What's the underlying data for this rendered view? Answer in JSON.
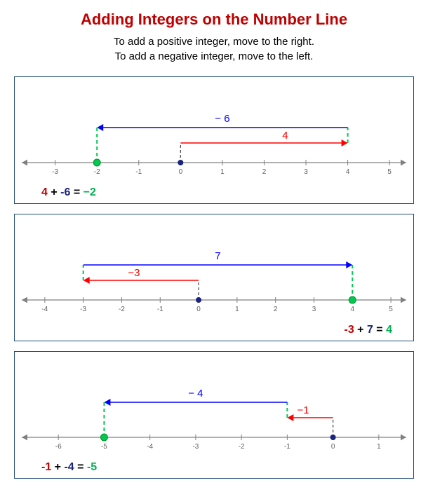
{
  "title": "Adding Integers on the Number Line",
  "title_color": "#c00000",
  "subtitle_line1": "To add a positive integer, move to the right.",
  "subtitle_line2": "To add a negative integer, move to the left.",
  "subtitle_color": "#000000",
  "panel_border_color": "#1f4e79",
  "axis_color": "#808080",
  "tick_label_color": "#606060",
  "tick_label_fontsize": 10,
  "start_dot_color": "#1a237e",
  "end_dot_color": "#00c853",
  "dash_color": "#00c853",
  "arrow1_color": "#ff0000",
  "arrow2_color": "#0000ff",
  "label_fontsize": 15,
  "panels": [
    {
      "xmin": -3.8,
      "xmax": 5.4,
      "ticks": [
        -3,
        -2,
        -1,
        0,
        1,
        2,
        3,
        4,
        5
      ],
      "start": 0,
      "step1_to": 4,
      "step1_label": "4",
      "step1_y": 28,
      "step2_to": -2,
      "step2_label": "− 6",
      "step2_y": 50,
      "equation_side": "left",
      "eq_parts": [
        {
          "text": "4",
          "color": "#c00000"
        },
        {
          "text": " + ",
          "color": "#000000"
        },
        {
          "text": "-6",
          "color": "#1a237e"
        },
        {
          "text": " = ",
          "color": "#000000"
        },
        {
          "text": "−2",
          "color": "#00b050"
        }
      ]
    },
    {
      "xmin": -4.6,
      "xmax": 5.4,
      "ticks": [
        -4,
        -3,
        -2,
        -1,
        0,
        1,
        2,
        3,
        4,
        5
      ],
      "start": 0,
      "step1_to": -3,
      "step1_label": "−3",
      "step1_y": 28,
      "step2_to": 4,
      "step2_label": "7",
      "step2_y": 50,
      "equation_side": "right",
      "eq_parts": [
        {
          "text": "-3",
          "color": "#c00000"
        },
        {
          "text": " + ",
          "color": "#000000"
        },
        {
          "text": "7",
          "color": "#1a237e"
        },
        {
          "text": " = ",
          "color": "#000000"
        },
        {
          "text": "4",
          "color": "#00b050"
        }
      ]
    },
    {
      "xmin": -6.8,
      "xmax": 1.6,
      "ticks": [
        -6,
        -5,
        -4,
        -3,
        -2,
        -1,
        0,
        1
      ],
      "start": 0,
      "step1_to": -1,
      "step1_label": "−1",
      "step1_y": 28,
      "step2_to": -5,
      "step2_label": "− 4",
      "step2_y": 50,
      "equation_side": "left",
      "eq_parts": [
        {
          "text": "-1",
          "color": "#c00000"
        },
        {
          "text": " + ",
          "color": "#000000"
        },
        {
          "text": "-4",
          "color": "#1a237e"
        },
        {
          "text": " = ",
          "color": "#000000"
        },
        {
          "text": "-5",
          "color": "#00b050"
        }
      ]
    }
  ]
}
